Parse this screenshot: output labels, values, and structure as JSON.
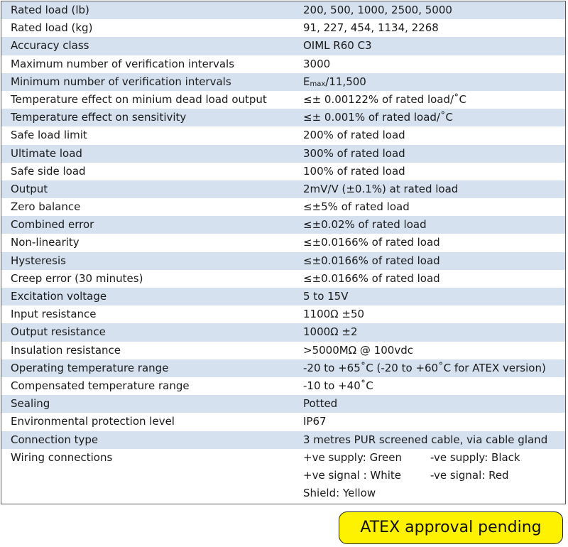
{
  "specs": [
    {
      "label": "Rated load (lb)",
      "value": "200, 500, 1000, 2500, 5000"
    },
    {
      "label": "Rated load (kg)",
      "value": "91, 227, 454, 1134, 2268"
    },
    {
      "label": "Accuracy class",
      "value": "OIML R60 C3"
    },
    {
      "label": "Maximum number of verification intervals",
      "value": "3000"
    },
    {
      "label": "Minimum number of verification intervals",
      "value_prefix": "E",
      "value_sub": "max",
      "value_suffix": "/11,500"
    },
    {
      "label": "Temperature effect on minium dead load output",
      "value": "≤± 0.00122% of rated load/˚C"
    },
    {
      "label": "Temperature effect on sensitivity",
      "value": "≤± 0.001% of rated load/˚C"
    },
    {
      "label": "Safe load limit",
      "value": "200% of rated load"
    },
    {
      "label": "Ultimate load",
      "value": "300% of rated load"
    },
    {
      "label": "Safe side load",
      "value": "100% of rated load"
    },
    {
      "label": "Output",
      "value": "2mV/V (±0.1%) at rated load"
    },
    {
      "label": "Zero balance",
      "value": "≤±5% of rated load"
    },
    {
      "label": "Combined error",
      "value": "≤±0.02% of rated load"
    },
    {
      "label": "Non-linearity",
      "value": "≤±0.0166% of rated load"
    },
    {
      "label": "Hysteresis",
      "value": "≤±0.0166% of rated load"
    },
    {
      "label": "Creep error (30 minutes)",
      "value": "≤±0.0166% of rated load"
    },
    {
      "label": "Excitation voltage",
      "value": "5 to 15V"
    },
    {
      "label": "Input resistance",
      "value": "1100Ω ±50"
    },
    {
      "label": "Output resistance",
      "value": "1000Ω ±2"
    },
    {
      "label": "Insulation resistance",
      "value": ">5000MΩ @ 100vdc"
    },
    {
      "label": "Operating temperature range",
      "value": "-20 to +65˚C (-20 to +60˚C for ATEX version)"
    },
    {
      "label": "Compensated temperature range",
      "value": "-10 to +40˚C"
    },
    {
      "label": "Sealing",
      "value": "Potted"
    },
    {
      "label": "Environmental protection level",
      "value": "IP67"
    },
    {
      "label": "Connection type",
      "value": "3 metres PUR screened cable, via cable gland"
    }
  ],
  "wiring": {
    "label": "Wiring connections",
    "supply_pos": "+ve supply: Green",
    "supply_neg": "-ve supply: Black",
    "signal_pos": "+ve signal : White",
    "signal_neg": "-ve signal: Red",
    "shield": "Shield: Yellow"
  },
  "badge": {
    "text": "ATEX approval pending"
  },
  "colors": {
    "row_stripe": "#d5e1ef",
    "badge_fill": "#fff200"
  }
}
